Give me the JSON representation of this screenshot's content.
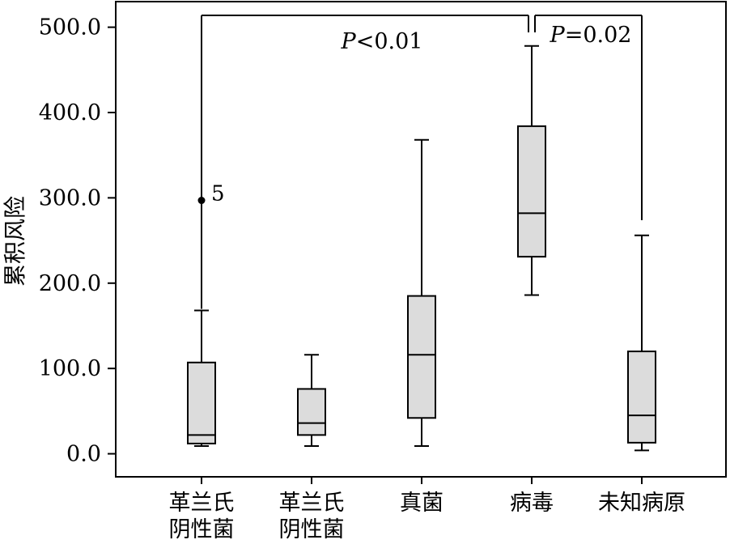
{
  "chart_data": {
    "type": "box",
    "ylabel": "累积风险",
    "xlabel": "",
    "ylim": [
      -27,
      530
    ],
    "yticks": [
      0,
      100,
      200,
      300,
      400,
      500
    ],
    "ytick_labels": [
      "0.0",
      "100.0",
      "200.0",
      "300.0",
      "400.0",
      "500.0"
    ],
    "grid": false,
    "box_fill": "#dcdcdc",
    "line_color": "#000000",
    "categories": [
      {
        "label_lines": [
          "革兰氏",
          "阴性菌"
        ],
        "min": 9,
        "q1": 12,
        "median": 22,
        "q3": 107,
        "max": 168
      },
      {
        "label_lines": [
          "革兰氏",
          "阴性菌"
        ],
        "min": 9,
        "q1": 22,
        "median": 36,
        "q3": 76,
        "max": 116
      },
      {
        "label_lines": [
          "真菌"
        ],
        "min": 9,
        "q1": 42,
        "median": 116,
        "q3": 185,
        "max": 368
      },
      {
        "label_lines": [
          "病毒"
        ],
        "min": 186,
        "q1": 231,
        "median": 282,
        "q3": 384,
        "max": 478
      },
      {
        "label_lines": [
          "未知病原"
        ],
        "min": 4,
        "q1": 13,
        "median": 45,
        "q3": 120,
        "max": 256
      }
    ],
    "outliers": [
      {
        "category": 0,
        "value": 297,
        "label": "5"
      }
    ],
    "annotations": [
      {
        "italic": "P",
        "rest": "<0.01"
      },
      {
        "italic": "P",
        "rest": "=0.02"
      }
    ]
  }
}
